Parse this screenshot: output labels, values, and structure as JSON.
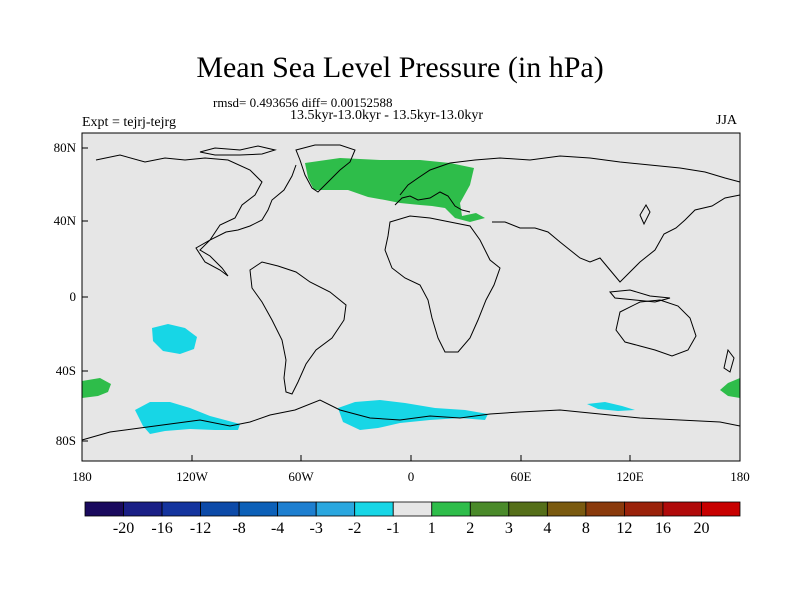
{
  "title": "Mean Sea Level Pressure (in hPa)",
  "stats_line": "rmsd= 0.493656 diff= 0.00152588",
  "comparison": "13.5kyr-13.0kyr - 13.5kyr-13.0kyr",
  "experiment": "Expt = tejrj-tejrg",
  "season": "JJA",
  "x_ticks": [
    "180",
    "120W",
    "60W",
    "0",
    "60E",
    "120E",
    "180"
  ],
  "y_ticks": [
    "80N",
    "40N",
    "0",
    "40S",
    "80S"
  ],
  "colorbar": {
    "labels": [
      "-20",
      "-16",
      "-12",
      "-8",
      "-4",
      "-3",
      "-2",
      "-1",
      "1",
      "2",
      "3",
      "4",
      "8",
      "12",
      "16",
      "20"
    ],
    "colors": [
      "#1a0a5e",
      "#1a1f86",
      "#14349e",
      "#0c4aa8",
      "#0c60b8",
      "#1e7fd0",
      "#2aa7df",
      "#17d6e6",
      "#e6e6e6",
      "#2ebd4a",
      "#4a8a2a",
      "#556f19",
      "#7a5a10",
      "#8a3a0c",
      "#9a220a",
      "#b00a0a",
      "#c80000"
    ]
  },
  "map": {
    "background": "#e6e6e6",
    "positive_color": "#2ebd4a",
    "negative_color": "#17d6e6"
  }
}
